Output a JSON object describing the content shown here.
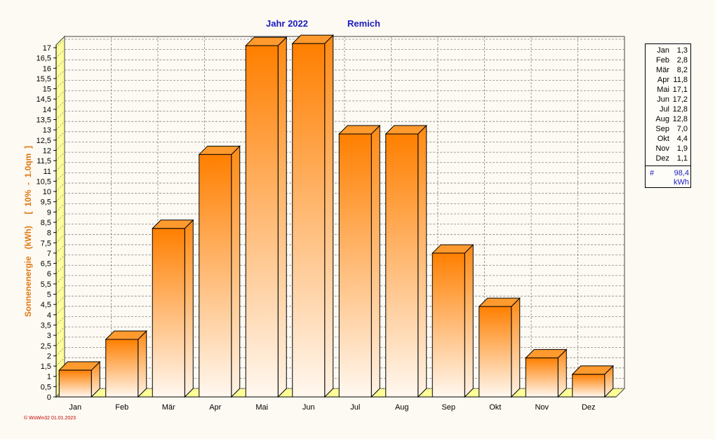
{
  "chart_data": {
    "type": "bar",
    "title_parts": [
      "Jahr  2022",
      "Remich"
    ],
    "ylabel": "Sonnenenergie   (kWh)     [  10%  -  1.0qm  ]",
    "categories": [
      "Jan",
      "Feb",
      "Mär",
      "Apr",
      "Mai",
      "Jun",
      "Jul",
      "Aug",
      "Sep",
      "Okt",
      "Nov",
      "Dez"
    ],
    "values": [
      1.3,
      2.8,
      8.2,
      11.8,
      17.1,
      17.2,
      12.8,
      12.8,
      7.0,
      4.4,
      1.9,
      1.1
    ],
    "ylim": [
      0,
      17
    ],
    "ytick_step": 0.5,
    "ytick_labels": [
      "0",
      "0,5",
      "1",
      "1,5",
      "2",
      "2,5",
      "3",
      "3,5",
      "4",
      "4,5",
      "5",
      "5,5",
      "6",
      "6,5",
      "7",
      "7,5",
      "8",
      "8,5",
      "9",
      "9,5",
      "10",
      "10,5",
      "11",
      "11,5",
      "12",
      "12,5",
      "13",
      "13,5",
      "14",
      "14,5",
      "15",
      "15,5",
      "16",
      "16,5",
      "17"
    ],
    "grid": true,
    "legend_placement": "right",
    "legend": {
      "rows": [
        {
          "month": "Jan",
          "value": "1,3"
        },
        {
          "month": "Feb",
          "value": "2,8"
        },
        {
          "month": "Mär",
          "value": "8,2"
        },
        {
          "month": "Apr",
          "value": "11,8"
        },
        {
          "month": "Mai",
          "value": "17,1"
        },
        {
          "month": "Jun",
          "value": "17,2"
        },
        {
          "month": "Jul",
          "value": "12,8"
        },
        {
          "month": "Aug",
          "value": "12,8"
        },
        {
          "month": "Sep",
          "value": "7,0"
        },
        {
          "month": "Okt",
          "value": "4,4"
        },
        {
          "month": "Nov",
          "value": "1,9"
        },
        {
          "month": "Dez",
          "value": "1,1"
        }
      ],
      "total_symbol": "#",
      "total": "98,4",
      "unit": "kWh"
    },
    "colors": {
      "bar_top": "#ff7f00",
      "bar_bottom": "#fff8f0",
      "side": "#ff9a2e",
      "wall": "#ffff99",
      "title": "#1b1bbf",
      "ylabel": "#e07812"
    }
  },
  "footer": "© WsWin32  01.01.2023"
}
